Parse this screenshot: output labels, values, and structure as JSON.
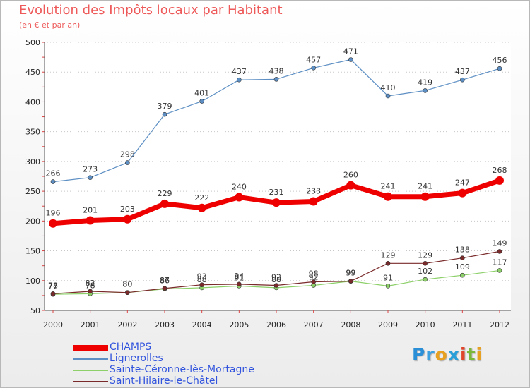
{
  "title": "Evolution des Impôts locaux par Habitant",
  "subtitle": "(en € et par an)",
  "logo": "Proxiti",
  "chart_data": {
    "type": "line",
    "title": "Evolution des Impôts locaux par Habitant",
    "subtitle": "(en € et par an)",
    "xlabel": "",
    "ylabel": "",
    "x": [
      "2000",
      "2001",
      "2002",
      "2003",
      "2004",
      "2005",
      "2006",
      "2007",
      "2008",
      "2009",
      "2010",
      "2011",
      "2012"
    ],
    "ylim": [
      50,
      500
    ],
    "yticks": [
      50,
      100,
      150,
      200,
      250,
      300,
      350,
      400,
      450,
      500
    ],
    "grid": "horizontal-dotted",
    "legend_placement": "bottom-left",
    "series": [
      {
        "name": "CHAMPS",
        "color": "#ee0000",
        "values": [
          196,
          201,
          203,
          229,
          222,
          240,
          231,
          233,
          260,
          241,
          241,
          247,
          268
        ],
        "labels": [
          "196",
          "201",
          "203",
          "229",
          "222",
          "240",
          "231",
          "233",
          "260",
          "241",
          "241",
          "247",
          "268"
        ]
      },
      {
        "name": "Lignerolles",
        "color": "#5d8fc4",
        "values": [
          266,
          273,
          298,
          379,
          401,
          437,
          438,
          457,
          471,
          410,
          419,
          437,
          456
        ],
        "labels": [
          "266",
          "273",
          "298",
          "379",
          "401",
          "437",
          "438",
          "457",
          "471",
          "410",
          "419",
          "437",
          "456"
        ]
      },
      {
        "name": "Sainte-Céronne-lès-Mortagne",
        "color": "#8dd06a",
        "values": [
          77,
          78,
          80,
          86,
          88,
          91,
          88,
          92,
          99,
          91,
          102,
          109,
          117
        ],
        "labels": [
          "77",
          "78",
          "80",
          "86",
          "88",
          "91",
          "88",
          "92",
          "99",
          "91",
          "102",
          "109",
          "117"
        ]
      },
      {
        "name": "Saint-Hilaire-le-Châtel",
        "color": "#7a2a2a",
        "values": [
          78,
          82,
          80,
          87,
          93,
          94,
          92,
          98,
          99,
          129,
          129,
          138,
          149
        ],
        "labels": [
          "78",
          "82",
          "80",
          "87",
          "93",
          "94",
          "92",
          "98",
          "99",
          "129",
          "129",
          "138",
          "149"
        ]
      }
    ]
  }
}
